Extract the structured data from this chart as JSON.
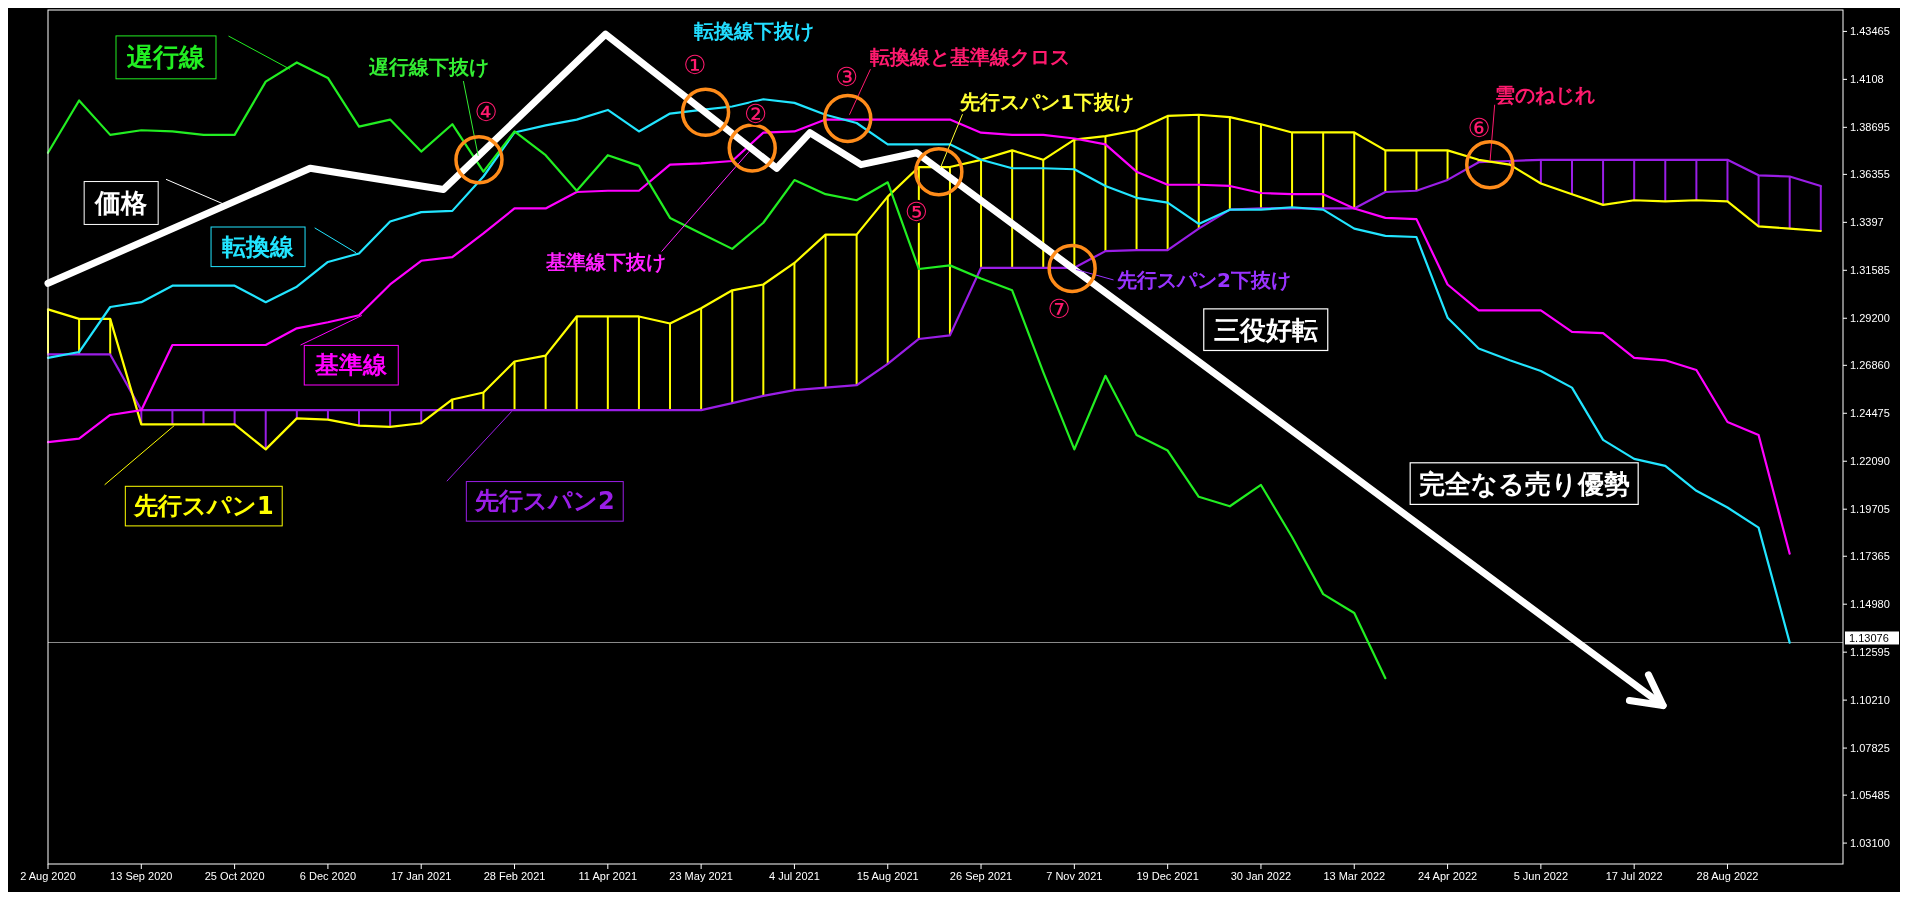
{
  "chart_data": {
    "type": "line",
    "x": [
      "2020-08-02",
      "2020-08-16",
      "2020-08-30",
      "2020-09-13",
      "2020-09-27",
      "2020-10-11",
      "2020-10-25",
      "2020-11-08",
      "2020-11-22",
      "2020-12-06",
      "2020-12-20",
      "2021-01-03",
      "2021-01-17",
      "2021-01-31",
      "2021-02-14",
      "2021-02-28",
      "2021-03-14",
      "2021-03-28",
      "2021-04-11",
      "2021-04-25",
      "2021-05-09",
      "2021-05-23",
      "2021-06-06",
      "2021-06-20",
      "2021-07-04",
      "2021-07-18",
      "2021-08-01",
      "2021-08-15",
      "2021-08-29",
      "2021-09-12",
      "2021-09-26",
      "2021-10-10",
      "2021-10-24",
      "2021-11-07",
      "2021-11-21",
      "2021-12-05",
      "2021-12-19",
      "2022-01-02",
      "2022-01-16",
      "2022-01-30",
      "2022-02-13",
      "2022-02-27",
      "2022-03-13",
      "2022-03-27",
      "2022-04-10",
      "2022-04-24",
      "2022-05-08",
      "2022-05-22",
      "2022-06-05",
      "2022-06-19",
      "2022-07-03",
      "2022-07-17",
      "2022-07-31",
      "2022-08-14",
      "2022-08-28",
      "2022-09-11",
      "2022-09-25",
      "2022-10-09"
    ],
    "series": [
      {
        "name": "遅行線",
        "color": "#22ee22",
        "values": [
          1.3743,
          1.4003,
          1.3832,
          1.3855,
          1.3849,
          1.3832,
          1.3832,
          1.4097,
          1.4192,
          1.4115,
          1.3873,
          1.3908,
          1.3749,
          1.3885,
          1.3649,
          1.3849,
          1.3731,
          1.3554,
          1.3731,
          1.3678,
          1.3419,
          1.3342,
          1.3265,
          1.3395,
          1.3607,
          1.3537,
          1.3507,
          1.3596,
          1.3165,
          1.3183,
          1.3118,
          1.3059,
          1.2652,
          1.2268,
          1.2634,
          1.2339,
          1.2262,
          1.2032,
          1.1985,
          1.2091,
          1.1832,
          1.1548,
          1.1454,
          1.113,
          null,
          null,
          null,
          null,
          null,
          null,
          null,
          null,
          null,
          null,
          null,
          null,
          null,
          null
        ]
      },
      {
        "name": "価格",
        "color": "#ffffff",
        "x": [
          "2020-08-02",
          "2020-11-28",
          "2021-01-27",
          "2021-04-10",
          "2021-06-26",
          "2021-07-11",
          "2021-08-03",
          "2021-08-28",
          "2022-07-30"
        ],
        "values": [
          1.3094,
          1.3666,
          1.356,
          1.4333,
          1.3666,
          1.3843,
          1.3684,
          1.3743,
          1.0994
        ]
      },
      {
        "name": "転換線",
        "color": "#22e5ff",
        "values": [
          1.2723,
          1.2752,
          1.2976,
          1.3,
          1.3082,
          1.3082,
          1.3082,
          1.3,
          1.3077,
          1.32,
          1.3242,
          1.3401,
          1.3448,
          1.3454,
          1.3625,
          1.3844,
          1.3879,
          1.3908,
          1.3956,
          1.3849,
          1.3938,
          1.3956,
          1.3973,
          1.4009,
          1.3991,
          1.3932,
          1.3891,
          1.3785,
          1.3785,
          1.3785,
          1.3708,
          1.3666,
          1.3666,
          1.3661,
          1.3578,
          1.3519,
          1.3495,
          1.3389,
          1.346,
          1.346,
          1.3472,
          1.346,
          1.3366,
          1.333,
          1.3324,
          1.2923,
          1.277,
          1.2711,
          1.2658,
          1.2575,
          1.2315,
          1.2221,
          1.2186,
          1.2062,
          1.1979,
          1.1879,
          1.1307,
          null
        ]
      },
      {
        "name": "基準線",
        "color": "#ff00ff",
        "values": [
          1.2304,
          1.2321,
          1.2439,
          1.2463,
          1.2787,
          1.2787,
          1.2787,
          1.2787,
          1.287,
          1.29,
          1.2935,
          1.3088,
          1.3206,
          1.3224,
          1.3342,
          1.3466,
          1.3466,
          1.3548,
          1.3554,
          1.3554,
          1.3684,
          1.369,
          1.3702,
          1.3843,
          1.3849,
          1.3908,
          1.3908,
          1.3908,
          1.3908,
          1.3908,
          1.3843,
          1.3832,
          1.3832,
          1.3814,
          1.3785,
          1.3649,
          1.3584,
          1.3584,
          1.3578,
          1.3543,
          1.3537,
          1.3537,
          1.3466,
          1.3419,
          1.3413,
          1.3088,
          1.2959,
          1.2959,
          1.2959,
          1.2852,
          1.2846,
          1.2723,
          1.2711,
          1.2663,
          1.2404,
          1.2339,
          1.1749,
          null
        ]
      },
      {
        "name": "先行スパン1",
        "color": "#ffff00",
        "values": [
          1.2964,
          1.2917,
          1.2917,
          1.2392,
          1.2392,
          1.2392,
          1.2392,
          1.2268,
          1.2422,
          1.2416,
          1.2386,
          1.238,
          1.2398,
          1.2516,
          1.2551,
          1.2705,
          1.2734,
          1.2929,
          1.2929,
          1.2929,
          1.2894,
          1.297,
          1.3059,
          1.3088,
          1.3195,
          1.3336,
          1.3336,
          1.3525,
          1.3672,
          1.3672,
          1.3708,
          1.3755,
          1.3708,
          1.3808,
          1.3826,
          1.3855,
          1.3926,
          1.3932,
          1.392,
          1.3885,
          1.3844,
          1.3844,
          1.3844,
          1.3755,
          1.3755,
          1.3755,
          1.3708,
          1.3684,
          1.359,
          1.3537,
          1.3484,
          1.3507,
          1.3501,
          1.3507,
          1.3501,
          1.3377,
          1.3366,
          1.3354
        ]
      },
      {
        "name": "先行スパン2",
        "color": "#9a1ee6",
        "values": [
          1.274,
          1.274,
          1.274,
          1.2463,
          1.2463,
          1.2463,
          1.2463,
          1.2463,
          1.2463,
          1.2463,
          1.2463,
          1.2463,
          1.2463,
          1.2463,
          1.2463,
          1.2463,
          1.2463,
          1.2463,
          1.2463,
          1.2463,
          1.2463,
          1.2463,
          1.2498,
          1.2534,
          1.2563,
          1.2575,
          1.2587,
          1.2693,
          1.2817,
          1.2835,
          1.3171,
          1.3171,
          1.3171,
          1.3171,
          1.3254,
          1.3259,
          1.3259,
          1.3366,
          1.346,
          1.3466,
          1.3466,
          1.3466,
          1.3466,
          1.3548,
          1.3554,
          1.3608,
          1.3696,
          1.3702,
          1.3708,
          1.3708,
          1.3708,
          1.3708,
          1.3708,
          1.3708,
          1.3708,
          1.3631,
          1.3625,
          1.3578
        ]
      }
    ],
    "xlim": [
      "2020-08-02",
      "2022-10-19"
    ],
    "xticks": [
      {
        "value": "2020-08-02",
        "label": "2 Aug 2020"
      },
      {
        "value": "2020-09-13",
        "label": "13 Sep 2020"
      },
      {
        "value": "2020-10-25",
        "label": "25 Oct 2020"
      },
      {
        "value": "2020-12-06",
        "label": "6 Dec 2020"
      },
      {
        "value": "2021-01-17",
        "label": "17 Jan 2021"
      },
      {
        "value": "2021-02-28",
        "label": "28 Feb 2021"
      },
      {
        "value": "2021-04-11",
        "label": "11 Apr 2021"
      },
      {
        "value": "2021-05-23",
        "label": "23 May 2021"
      },
      {
        "value": "2021-07-04",
        "label": "4 Jul 2021"
      },
      {
        "value": "2021-08-15",
        "label": "15 Aug 2021"
      },
      {
        "value": "2021-09-26",
        "label": "26 Sep 2021"
      },
      {
        "value": "2021-11-07",
        "label": "7 Nov 2021"
      },
      {
        "value": "2021-12-19",
        "label": "19 Dec 2021"
      },
      {
        "value": "2022-01-30",
        "label": "30 Jan 2022"
      },
      {
        "value": "2022-03-13",
        "label": "13 Mar 2022"
      },
      {
        "value": "2022-04-24",
        "label": "24 Apr 2022"
      },
      {
        "value": "2022-06-05",
        "label": "5 Jun 2022"
      },
      {
        "value": "2022-07-17",
        "label": "17 Jul 2022"
      },
      {
        "value": "2022-08-28",
        "label": "28 Aug 2022"
      }
    ],
    "ylim": [
      1.0206,
      1.4453
    ],
    "yticks": [
      1.43465,
      1.4108,
      1.38695,
      1.36355,
      1.3397,
      1.31585,
      {
        "value": 1.292,
        "label": "1.29200"
      },
      {
        "value": 1.2686,
        "label": "1.26860"
      },
      1.24475,
      {
        "value": 1.2209,
        "label": "1.22090"
      },
      1.19705,
      1.17365,
      {
        "value": 1.1498,
        "label": "1.14980"
      },
      1.12595,
      {
        "value": 1.1021,
        "label": "1.10210"
      },
      1.07825,
      1.05485,
      {
        "value": 1.031,
        "label": "1.03100"
      }
    ],
    "ref_lines": [
      {
        "axis": "y",
        "value": 1.13076,
        "label": "1.13076",
        "color": "#8c8c8c"
      }
    ],
    "annotations": [
      "転換線下抜け",
      {
        "text": "転換線と基準線クロス",
        "x": "2021-07-28",
        "y": 1.3914
      },
      {
        "text": "遅行線下抜け",
        "x": "2021-02-12",
        "y": 1.3708
      },
      {
        "text": "基準線下抜け",
        "x": "2021-06-15",
        "y": 1.3767
      },
      {
        "text": "先行スパン1下抜け",
        "x": "2021-09-07",
        "y": 1.3649
      },
      {
        "text": "雲のねじれ",
        "x": "2022-05-13",
        "y": 1.3684
      },
      {
        "text": "先行スパン2下抜け",
        "x": "2021-11-06",
        "y": 1.3168
      },
      "三役好転",
      "完全なる売り優勢",
      {
        "text": "①",
        "x": "2021-05-25",
        "y": 1.3944
      },
      {
        "text": "②",
        "x": "2021-06-15",
        "y": 1.3767
      },
      {
        "text": "③",
        "x": "2021-07-28",
        "y": 1.3914
      },
      {
        "text": "④",
        "x": "2021-02-12",
        "y": 1.3708
      },
      {
        "text": "⑤",
        "x": "2021-09-07",
        "y": 1.3649
      },
      {
        "text": "⑥",
        "x": "2022-05-13",
        "y": 1.3684
      },
      {
        "text": "⑦",
        "x": "2021-11-06",
        "y": 1.3168
      }
    ],
    "grid": false,
    "legend": "top left"
  }
}
